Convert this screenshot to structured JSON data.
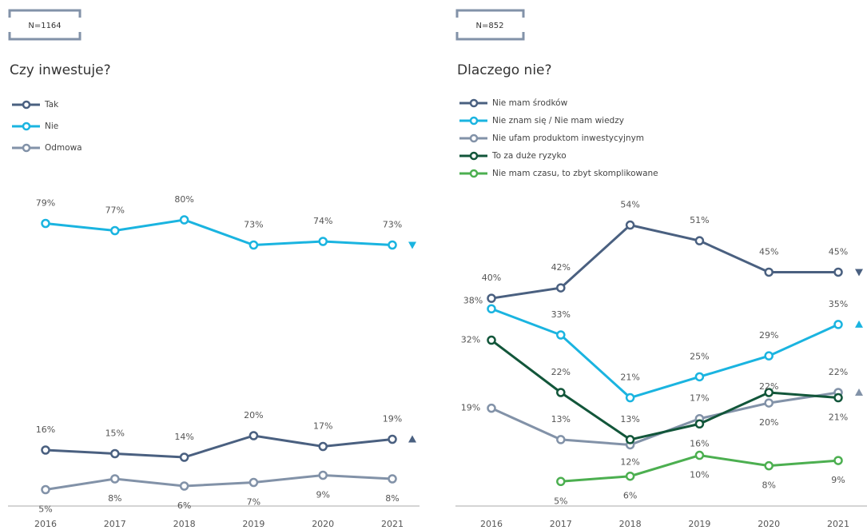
{
  "chart_data": [
    {
      "type": "line",
      "note": "N=1164",
      "title": "Czy inwestuje?",
      "categories": [
        "2016",
        "2017",
        "2018",
        "2019",
        "2020",
        "2021"
      ],
      "ylim": [
        0,
        80
      ],
      "series": [
        {
          "name": "Tak",
          "color": "#4a6080",
          "values": [
            16,
            15,
            14,
            20,
            17,
            19
          ],
          "value_labels": [
            "16%",
            "15%",
            "14%",
            "20%",
            "17%",
            "19%"
          ],
          "trend": "up"
        },
        {
          "name": "Nie",
          "color": "#1ab4e0",
          "values": [
            79,
            77,
            80,
            73,
            74,
            73
          ],
          "value_labels": [
            "79%",
            "77%",
            "80%",
            "73%",
            "74%",
            "73%"
          ],
          "trend": "down"
        },
        {
          "name": "Odmowa",
          "color": "#8292a8",
          "values": [
            5,
            8,
            6,
            7,
            9,
            8
          ],
          "value_labels": [
            "5%",
            "8%",
            "6%",
            "7%",
            "9%",
            "8%"
          ]
        }
      ]
    },
    {
      "type": "line",
      "note": "N=852",
      "title": "Dlaczego nie?",
      "categories": [
        "2016",
        "2017",
        "2018",
        "2019",
        "2020",
        "2021"
      ],
      "ylim": [
        0,
        55
      ],
      "series": [
        {
          "name": "Nie mam środków",
          "color": "#4a6080",
          "values": [
            40,
            42,
            54,
            51,
            45,
            45
          ],
          "value_labels": [
            "40%",
            "42%",
            "54%",
            "51%",
            "45%",
            "45%"
          ],
          "trend": "down"
        },
        {
          "name": "Nie znam się / Nie mam wiedzy",
          "color": "#1ab4e0",
          "values": [
            38,
            33,
            21,
            25,
            29,
            35
          ],
          "value_labels": [
            "38%",
            "33%",
            "21%",
            "25%",
            "29%",
            "35%"
          ],
          "trend": "up"
        },
        {
          "name": "Nie ufam produktom inwestycyjnym",
          "color": "#8292a8",
          "values": [
            19,
            13,
            12,
            17,
            20,
            22
          ],
          "value_labels": [
            "19%",
            "13%",
            "12%",
            "17%",
            "20%",
            "22%"
          ],
          "trend": "up"
        },
        {
          "name": "To za duże ryzyko",
          "color": "#12563a",
          "values": [
            32,
            22,
            13,
            16,
            22,
            21
          ],
          "value_labels": [
            "32%",
            "22%",
            "13%",
            "16%",
            "22%",
            "21%"
          ]
        },
        {
          "name": "Nie mam czasu, to zbyt skomplikowane",
          "color": "#4caf50",
          "values": [
            null,
            5,
            6,
            10,
            8,
            9
          ],
          "value_labels": [
            null,
            "5%",
            "6%",
            "10%",
            "8%",
            "9%"
          ]
        }
      ]
    }
  ]
}
